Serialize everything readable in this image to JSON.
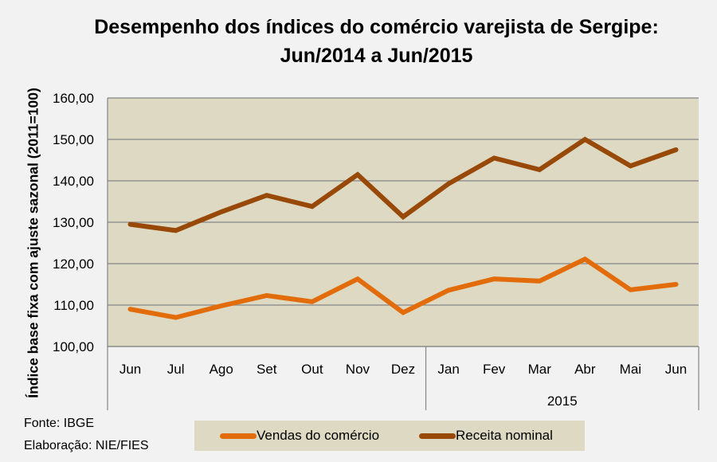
{
  "chart_data": {
    "type": "line",
    "title": "Desempenho dos índices do comércio varejista de Sergipe:",
    "subtitle": "Jun/2014 a Jun/2015",
    "xlabel": "",
    "ylabel": "Índice base fixa com ajuste sazonal (2011=100)",
    "ylim": [
      100,
      160
    ],
    "yticks": [
      "100,00",
      "110,00",
      "120,00",
      "130,00",
      "140,00",
      "150,00",
      "160,00"
    ],
    "ytick_values": [
      100,
      110,
      120,
      130,
      140,
      150,
      160
    ],
    "categories": [
      "Jun",
      "Jul",
      "Ago",
      "Set",
      "Out",
      "Nov",
      "Dez",
      "Jan",
      "Fev",
      "Mar",
      "Abr",
      "Mai",
      "Jun"
    ],
    "category_groups": [
      {
        "label": "",
        "count": 7
      },
      {
        "label": "2015",
        "count": 6
      }
    ],
    "grid": true,
    "legend_position": "bottom",
    "series": [
      {
        "name": "Vendas do comércio",
        "color": "#e36c0a",
        "values": [
          109.0,
          107.0,
          109.8,
          112.3,
          110.8,
          116.3,
          108.2,
          113.6,
          116.3,
          115.8,
          121.1,
          113.7,
          115.0
        ]
      },
      {
        "name": "Receita nominal",
        "color": "#984807",
        "values": [
          129.5,
          128.0,
          132.5,
          136.5,
          133.8,
          141.5,
          131.3,
          139.3,
          145.5,
          142.7,
          150.0,
          143.6,
          147.5
        ]
      }
    ]
  },
  "colors": {
    "plot_bg": "#ddd9c3",
    "grid": "#868686",
    "page_bg": "#f2f2f2"
  },
  "footer": {
    "source": "Fonte: IBGE",
    "credit": "Elaboração: NIE/FIES"
  }
}
